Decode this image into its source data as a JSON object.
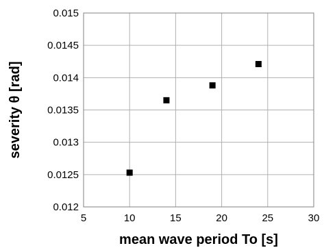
{
  "chart_data": {
    "type": "scatter",
    "title": "",
    "xlabel": "mean wave period To [s]",
    "ylabel": "severity θ [rad]",
    "xlim": [
      5,
      30
    ],
    "ylim": [
      0.012,
      0.015
    ],
    "x_ticks": [
      5,
      10,
      15,
      20,
      25,
      30
    ],
    "y_ticks": [
      0.012,
      0.0125,
      0.013,
      0.0135,
      0.014,
      0.0145,
      0.015
    ],
    "x_tick_labels": [
      "5",
      "10",
      "15",
      "20",
      "25",
      "30"
    ],
    "y_tick_labels": [
      "0.012",
      "0.0125",
      "0.013",
      "0.0135",
      "0.014",
      "0.0145",
      "0.015"
    ],
    "grid": true,
    "marker": "square",
    "colors": {
      "marker": "#000000",
      "grid": "#b0b0b0",
      "frame": "#808080"
    },
    "series": [
      {
        "x": [
          10,
          14,
          19,
          24
        ],
        "y": [
          0.01253,
          0.01365,
          0.01388,
          0.01421
        ]
      }
    ]
  }
}
